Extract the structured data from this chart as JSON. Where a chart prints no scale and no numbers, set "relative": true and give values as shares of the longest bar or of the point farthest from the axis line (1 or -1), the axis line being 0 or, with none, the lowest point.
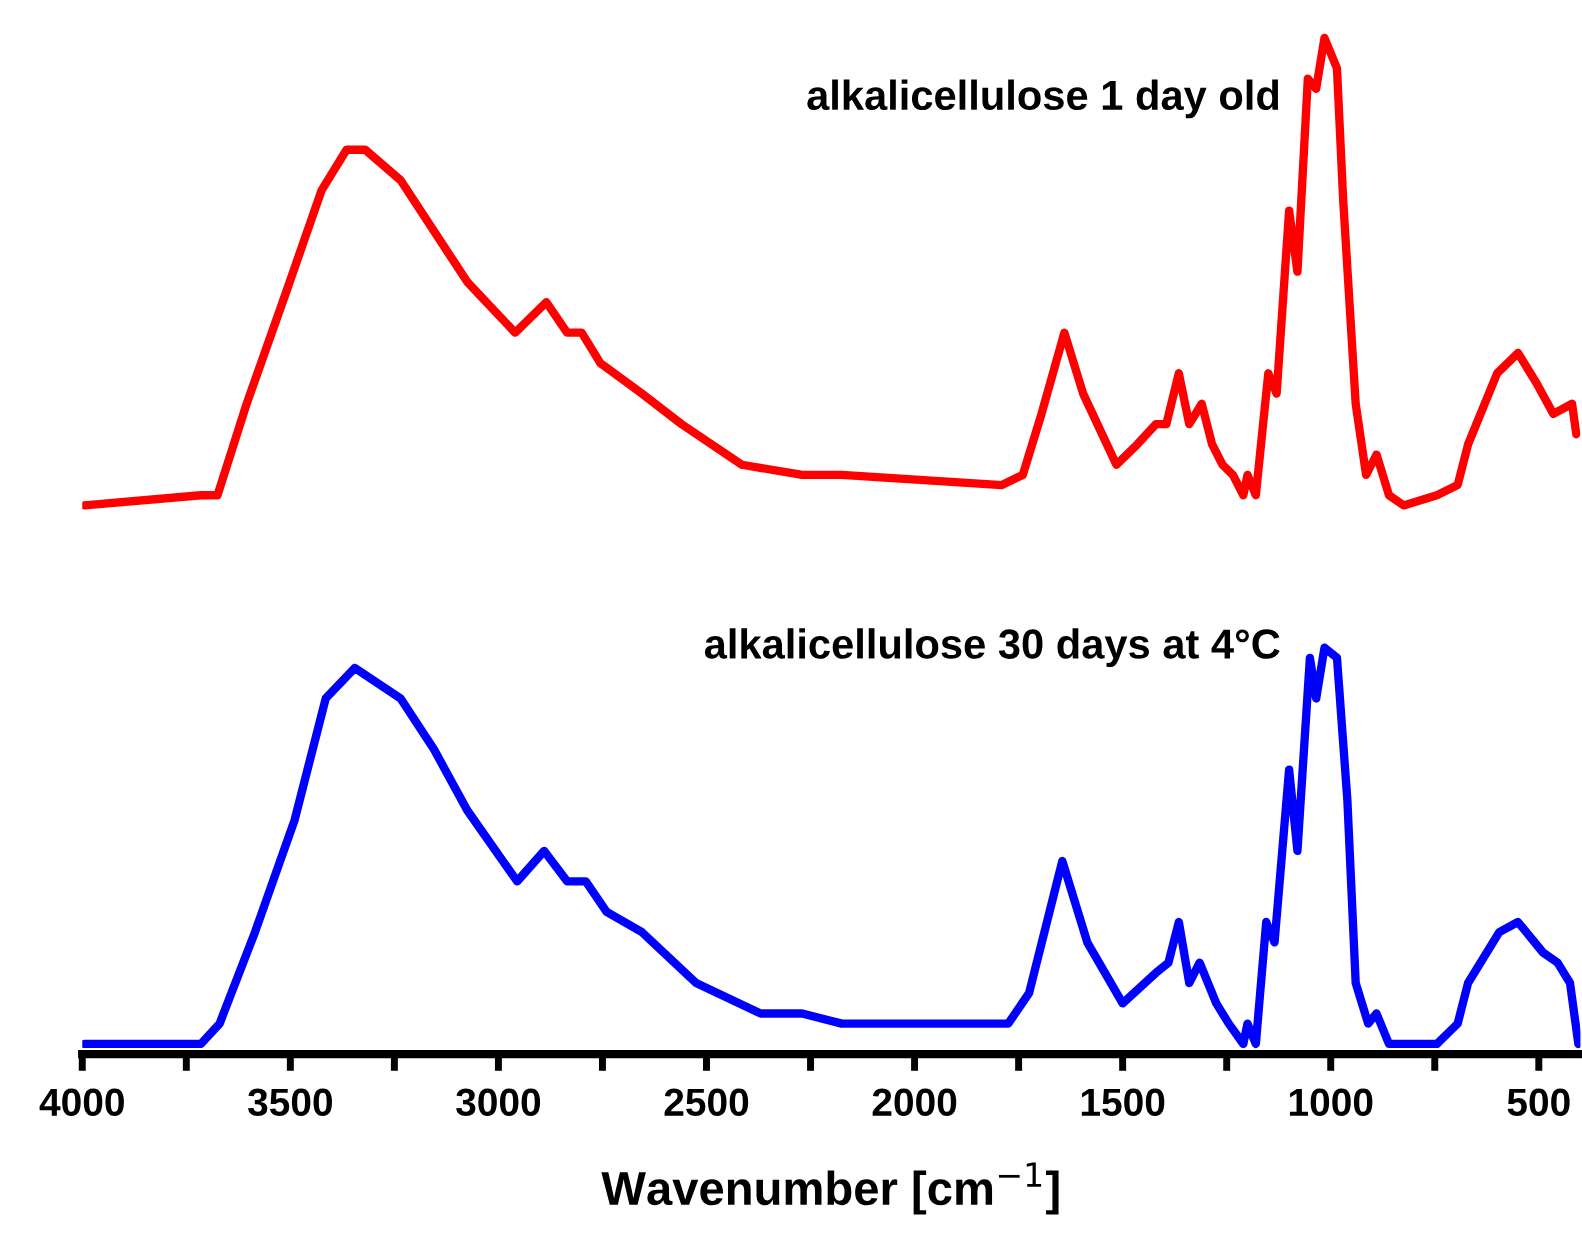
{
  "chart_data": {
    "type": "line",
    "relative": true,
    "xlabel": "Wavenumber [cm$^{−1}$]",
    "xlim": [
      4000,
      400
    ],
    "xticks": [
      4000,
      {
        "value": 3750,
        "label": null
      },
      3500,
      {
        "value": 3250,
        "label": null
      },
      3000,
      {
        "value": 2750,
        "label": null
      },
      2500,
      {
        "value": 2250,
        "label": null
      },
      2000,
      {
        "value": 1750,
        "label": null
      },
      1500,
      {
        "value": 1250,
        "label": null
      },
      1000,
      {
        "value": 750,
        "label": null
      },
      500
    ],
    "grid": false,
    "legend": false,
    "marker": "none",
    "line_style": "solid",
    "series": [
      {
        "name": "alkalicellulose 1 day old",
        "color": "#ff0000",
        "x": [
          3995,
          3715,
          3675,
          3605,
          3510,
          3425,
          3365,
          3320,
          3235,
          3155,
          3075,
          2960,
          2885,
          2835,
          2800,
          2755,
          2655,
          2560,
          2415,
          2270,
          2175,
          1790,
          1740,
          1695,
          1640,
          1595,
          1515,
          1465,
          1420,
          1395,
          1365,
          1340,
          1310,
          1285,
          1260,
          1235,
          1210,
          1200,
          1180,
          1150,
          1130,
          1100,
          1080,
          1055,
          1035,
          1015,
          985,
          970,
          940,
          915,
          890,
          860,
          825,
          745,
          695,
          670,
          600,
          550,
          505,
          465,
          420,
          410
        ],
        "values": [
          0.54,
          0.55,
          0.55,
          0.64,
          0.75,
          0.85,
          0.89,
          0.89,
          0.86,
          0.81,
          0.76,
          0.71,
          0.74,
          0.71,
          0.71,
          0.68,
          0.65,
          0.62,
          0.58,
          0.57,
          0.57,
          0.56,
          0.57,
          0.63,
          0.71,
          0.65,
          0.58,
          0.6,
          0.62,
          0.62,
          0.67,
          0.62,
          0.64,
          0.6,
          0.58,
          0.57,
          0.55,
          0.57,
          0.55,
          0.67,
          0.65,
          0.83,
          0.77,
          0.96,
          0.95,
          1.0,
          0.97,
          0.84,
          0.64,
          0.57,
          0.59,
          0.55,
          0.54,
          0.55,
          0.56,
          0.6,
          0.67,
          0.69,
          0.66,
          0.63,
          0.64,
          0.61
        ]
      },
      {
        "name": "alkalicellulose 30 days at 4°C",
        "color": "#0000ff",
        "x": [
          3995,
          3715,
          3670,
          3585,
          3490,
          3415,
          3345,
          3235,
          3155,
          3075,
          2955,
          2890,
          2835,
          2790,
          2740,
          2655,
          2525,
          2370,
          2270,
          2175,
          1775,
          1725,
          1645,
          1585,
          1500,
          1420,
          1390,
          1365,
          1340,
          1315,
          1275,
          1245,
          1210,
          1200,
          1180,
          1155,
          1135,
          1100,
          1080,
          1050,
          1035,
          1015,
          985,
          960,
          940,
          910,
          890,
          860,
          745,
          695,
          670,
          595,
          550,
          490,
          455,
          425,
          405
        ],
        "values": [
          0.01,
          0.01,
          0.03,
          0.12,
          0.23,
          0.35,
          0.38,
          0.35,
          0.3,
          0.24,
          0.17,
          0.2,
          0.17,
          0.17,
          0.14,
          0.12,
          0.07,
          0.04,
          0.04,
          0.03,
          0.03,
          0.06,
          0.19,
          0.11,
          0.05,
          0.08,
          0.09,
          0.13,
          0.07,
          0.09,
          0.05,
          0.03,
          0.01,
          0.03,
          0.01,
          0.13,
          0.11,
          0.28,
          0.2,
          0.39,
          0.35,
          0.4,
          0.39,
          0.25,
          0.07,
          0.03,
          0.04,
          0.01,
          0.01,
          0.03,
          0.07,
          0.12,
          0.13,
          0.1,
          0.09,
          0.07,
          0.01
        ]
      }
    ]
  }
}
